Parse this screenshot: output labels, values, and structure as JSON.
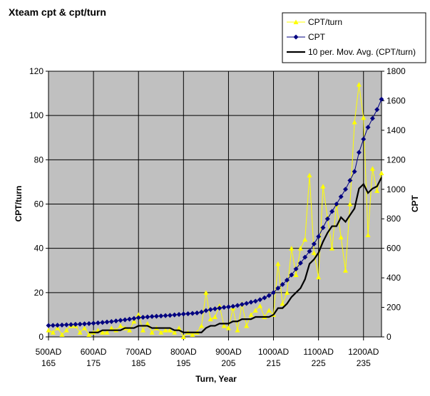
{
  "chart_data": {
    "type": "line",
    "title": "Xteam cpt & cpt/turn",
    "x_label": "Turn, Year",
    "y_label": "CPT/turn",
    "y2_label": "CPT",
    "x": [
      165,
      166,
      167,
      168,
      169,
      170,
      171,
      172,
      173,
      174,
      175,
      176,
      177,
      178,
      179,
      180,
      181,
      182,
      183,
      184,
      185,
      186,
      187,
      188,
      189,
      190,
      191,
      192,
      193,
      194,
      195,
      196,
      197,
      198,
      199,
      200,
      201,
      202,
      203,
      204,
      205,
      206,
      207,
      208,
      209,
      210,
      211,
      212,
      213,
      214,
      215,
      216,
      217,
      218,
      219,
      220,
      221,
      222,
      223,
      224,
      225,
      226,
      227,
      228,
      229,
      230,
      231,
      232,
      233,
      234,
      235,
      236,
      237,
      238,
      239
    ],
    "xlim": [
      165,
      239
    ],
    "xticks": [
      165,
      175,
      185,
      195,
      205,
      215,
      225,
      235
    ],
    "xtick_years": [
      "500AD",
      "600AD",
      "700AD",
      "800AD",
      "900AD",
      "1000AD",
      "1100AD",
      "1200AD"
    ],
    "ylim": [
      0,
      120
    ],
    "yticks": [
      0,
      20,
      40,
      60,
      80,
      100,
      120
    ],
    "y2lim": [
      0,
      1800
    ],
    "y2ticks": [
      0,
      200,
      400,
      600,
      800,
      1000,
      1200,
      1400,
      1600,
      1800
    ],
    "grid": true,
    "legend": "top-right",
    "series": [
      {
        "name": "CPT/turn",
        "color": "#ffff00",
        "marker": "triangle",
        "values": [
          3,
          2,
          4,
          1,
          3,
          5,
          5,
          2,
          4,
          1,
          2,
          3,
          2,
          2,
          4,
          3,
          5,
          4,
          3,
          7,
          10,
          3,
          6,
          2,
          4,
          2,
          3,
          3,
          2,
          4,
          0,
          2,
          1,
          2,
          5,
          20,
          8,
          9,
          14,
          5,
          4,
          13,
          3,
          15,
          5,
          10,
          12,
          14,
          9,
          12,
          10,
          33,
          15,
          20,
          40,
          28,
          40,
          44,
          73,
          38,
          27,
          68,
          54,
          40,
          60,
          45,
          30,
          60,
          97,
          114,
          99,
          46,
          76,
          66,
          74
        ]
      },
      {
        "name": "CPT",
        "color": "#000080",
        "marker": "diamond",
        "axis": "y2",
        "values": [
          77,
          78,
          79,
          80,
          82,
          83,
          85,
          86,
          88,
          90,
          92,
          95,
          98,
          101,
          104,
          108,
          112,
          116,
          120,
          125,
          130,
          133,
          135,
          138,
          140,
          142,
          144,
          146,
          149,
          152,
          155,
          157,
          159,
          162,
          168,
          178,
          185,
          190,
          195,
          200,
          203,
          207,
          213,
          220,
          227,
          235,
          242,
          252,
          265,
          280,
          300,
          330,
          355,
          385,
          420,
          460,
          500,
          540,
          580,
          630,
          680,
          740,
          800,
          850,
          900,
          950,
          1000,
          1060,
          1120,
          1250,
          1340,
          1420,
          1480,
          1540,
          1610
        ]
      },
      {
        "name": "10 per. Mov. Avg. (CPT/turn)",
        "color": "#000000",
        "values": [
          null,
          null,
          null,
          null,
          null,
          null,
          null,
          null,
          null,
          2,
          2,
          2,
          3,
          3,
          3,
          3,
          3,
          4,
          4,
          4,
          5,
          5,
          5,
          4,
          4,
          4,
          4,
          4,
          3,
          3,
          2,
          2,
          2,
          2,
          2,
          4,
          5,
          5,
          6,
          6,
          6,
          7,
          7,
          8,
          8,
          8,
          9,
          9,
          9,
          9,
          10,
          13,
          13,
          15,
          18,
          20,
          22,
          26,
          33,
          35,
          38,
          43,
          47,
          50,
          50,
          54,
          52,
          55,
          58,
          67,
          69,
          65,
          67,
          68,
          72
        ]
      }
    ]
  }
}
